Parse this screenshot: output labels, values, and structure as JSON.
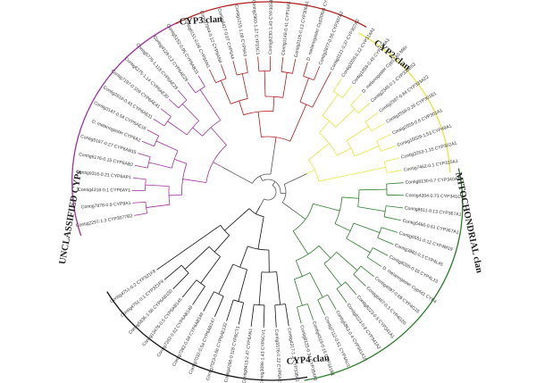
{
  "colors": {
    "cyp3": "#a032a0",
    "cyp2": "#b01c1c",
    "mito": "#e6e640",
    "cyp4": "#2d7d2d",
    "unclassified": "#111111",
    "inner": "#555555",
    "background": "#ffffff"
  },
  "clans": [
    {
      "key": "cyp3",
      "label": "CYP3 clan"
    },
    {
      "key": "cyp2",
      "label": "CYP2 clan"
    },
    {
      "key": "mito",
      "label": "MITOCHONDRIAL clan"
    },
    {
      "key": "cyp4",
      "label": "CYP4 clan"
    },
    {
      "key": "unclassified",
      "label": "UNCLASSIFIED CYPs"
    }
  ],
  "leaves": [
    {
      "label": "Contig2297-1.3 CYP3077B2",
      "clan": "cyp3"
    },
    {
      "label": "Contig7878-0.9 CYP9A1",
      "clan": "cyp3"
    },
    {
      "label": "Contig4318-0.1 CYP6AY1",
      "clan": "cyp3"
    },
    {
      "label": "Contig9316-0.21 CYP6AP1",
      "clan": "cyp3"
    },
    {
      "label": "Contig6176-0.15 CYP6AB2",
      "clan": "cyp3"
    },
    {
      "label": "Contig5167-0.27 CYP6AB15",
      "clan": "cyp3"
    },
    {
      "label": "D. melanogaster CYP6A2",
      "clan": "cyp3"
    },
    {
      "label": "Contig3147-0.54 CYP6AE16",
      "clan": "cyp3"
    },
    {
      "label": "Contig2616-0.43 CYP6AE11",
      "clan": "cyp3"
    },
    {
      "label": "Contig7197-0.109 CYP6AE41",
      "clan": "cyp3"
    },
    {
      "label": "Contig6275-1.14 CYP6AE30",
      "clan": "cyp3"
    },
    {
      "label": "Contig5775-1.118 CYP6AE28",
      "clan": "cyp3"
    },
    {
      "label": "Contig4128-0.2 CYP6AE29",
      "clan": "cyp3"
    },
    {
      "label": "Contig5152-0.95 CYP6AB31",
      "clan": "cyp3"
    },
    {
      "label": "Contig6151-0.08 CYP6AN1",
      "clan": "cyp2"
    },
    {
      "label": "Contig7844-0.12 CYP6AN4",
      "clan": "cyp2"
    },
    {
      "label": "Contig8427-0.07 CYP6A4",
      "clan": "cyp2"
    },
    {
      "label": "Contig1215-1.09 CYP9A3",
      "clan": "cyp2"
    },
    {
      "label": "Contig2960-1.37 CYP15C1",
      "clan": "cyp2"
    },
    {
      "label": "Contig9230-1.43 CYP305B1",
      "clan": "cyp2"
    },
    {
      "label": "Contig1148-0.41 CYP18A1",
      "clan": "cyp2"
    },
    {
      "label": "Contig2105-0.13 CYP306A1",
      "clan": "cyp2"
    },
    {
      "label": "D. melanogaster Cyp306a1 CYP2",
      "clan": "cyp2"
    },
    {
      "label": "Contig2877-0.55 CYP307A2",
      "clan": "cyp2"
    },
    {
      "label": "Contig1121-0.37 CYP307A2",
      "clan": "cyp2"
    },
    {
      "label": "Contig3209-0.12 CYP314A1",
      "clan": "mito"
    },
    {
      "label": "Contig1858-0.45 CYP314A1",
      "clan": "mito"
    },
    {
      "label": "D. melanogaster Cyp12A5 Mito",
      "clan": "mito"
    },
    {
      "label": "Contig2345-0.1 CYP333B53",
      "clan": "mito"
    },
    {
      "label": "Contig2397-0.64 CYP333A22",
      "clan": "mito"
    },
    {
      "label": "Contig2559-0.26 CYP301B1",
      "clan": "mito"
    },
    {
      "label": "Contig2559-0.6 CYP301A1",
      "clan": "mito"
    },
    {
      "label": "Contig10029-1.53 CYP49A1",
      "clan": "mito"
    },
    {
      "label": "Contig3253-1.15 CYP302A1",
      "clan": "mito"
    },
    {
      "label": "Contig7462-0.1 CYP315A1",
      "clan": "mito"
    },
    {
      "label": "Contig8130-0.7 CYP340A1",
      "clan": "cyp4"
    },
    {
      "label": "Contig4204-0.73 CYP341C1",
      "clan": "cyp4"
    },
    {
      "label": "Contig8611-0.13 CYP367A1",
      "clan": "cyp4"
    },
    {
      "label": "Contig5466-0.61 CYP367A1",
      "clan": "cyp4"
    },
    {
      "label": "Contig6551-0.12 CYP4M19",
      "clan": "cyp4"
    },
    {
      "label": "Contig3882-0.3 CYP4L45",
      "clan": "cyp4"
    },
    {
      "label": "Contig8205-0.18 CYP4L13",
      "clan": "cyp4"
    },
    {
      "label": "D. melanogaster Cyp4d1 CYP4",
      "clan": "cyp4"
    },
    {
      "label": "Contig4097-0.69 CYP4G15",
      "clan": "cyp4"
    },
    {
      "label": "Contig6467-0.3 CYP4G20",
      "clan": "cyp4"
    },
    {
      "label": "Contig8223-0.5 CYP341A1",
      "clan": "cyp4"
    },
    {
      "label": "Contig8223-0.8 CYP341A2",
      "clan": "cyp4"
    },
    {
      "label": "Contig5863-0.4 CYP341A10",
      "clan": "cyp4"
    },
    {
      "label": "Contig7112-0.51 CYP4AU1",
      "clan": "cyp4"
    },
    {
      "label": "Contig4519-0.15 CYP341B1",
      "clan": "cyp4"
    },
    {
      "label": "Contig8125-0.34 CYP354A1",
      "clan": "cyp4"
    },
    {
      "label": "Contig4317-1.3 CYP338A1",
      "clan": "unclassified"
    },
    {
      "label": "Contig5576-0.22 CYP6AE1",
      "clan": "unclassified"
    },
    {
      "label": "Contig3096-1.43 CYP6CV1",
      "clan": "unclassified"
    },
    {
      "label": "Contig8413-2.47 CYP6AN1",
      "clan": "unclassified"
    },
    {
      "label": "Contig4266-0.118 CYP6CT1",
      "clan": "unclassified"
    },
    {
      "label": "Contig7023-0.6b CYP6AE132",
      "clan": "unclassified"
    },
    {
      "label": "Contig7032-0.5a CYP6AB147",
      "clan": "unclassified"
    },
    {
      "label": "Contig7262-0.64 CYP6AB149",
      "clan": "unclassified"
    },
    {
      "label": "Contig7262-0.62 CYP6AB148",
      "clan": "unclassified"
    },
    {
      "label": "Contig13476-0.5 CYP6AB145",
      "clan": "unclassified"
    },
    {
      "label": "Contig5836-1.58 CYP6AB150",
      "clan": "unclassified"
    },
    {
      "label": "Contig4751-0.1 CYP321F9",
      "clan": "unclassified"
    },
    {
      "label": "Contig4751-0.2 CYP321F8",
      "clan": "unclassified"
    }
  ]
}
